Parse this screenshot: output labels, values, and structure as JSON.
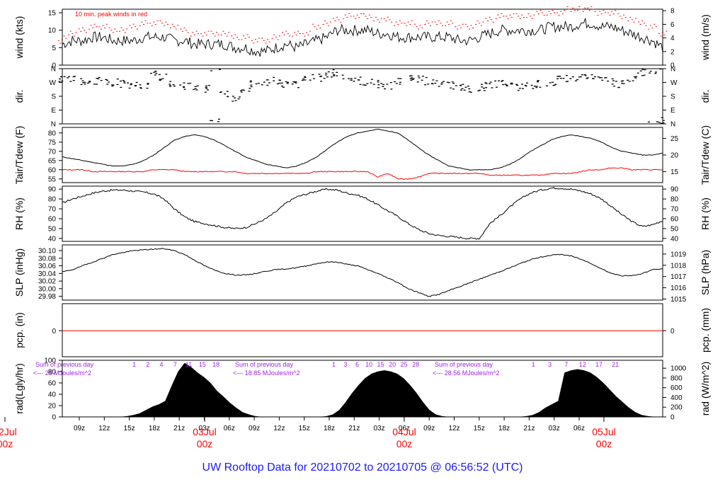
{
  "title": "UW Rooftop Data for 20210702  to  20210705 @ 06:56:52  (UTC)",
  "colors": {
    "title": "#1a1aff",
    "peak": "#ff0000",
    "dew": "#ff0000",
    "annot": "#a020f0",
    "daylabel": "#ff0000",
    "data": "#000000"
  },
  "chart_data": [
    {
      "id": "wind",
      "type": "line",
      "ylabel": "wind (kts)",
      "ylabel_right": "wind (m/s)",
      "ylim": [
        0,
        16
      ],
      "yticks": [
        0,
        5,
        10,
        15
      ],
      "yticks_right": [
        0,
        2,
        4,
        6,
        8
      ],
      "annotation": "10 min. peak winds in red",
      "series": [
        {
          "key": "wind",
          "values": [
            6,
            7,
            7,
            8,
            8,
            7,
            7,
            7,
            8,
            8,
            8,
            7,
            7,
            6,
            6,
            6,
            6,
            5,
            5,
            4,
            4,
            5,
            6,
            5,
            6,
            7,
            8,
            10,
            10,
            10,
            10,
            9,
            9,
            8,
            8,
            8,
            8,
            8,
            8,
            7,
            7,
            8,
            9,
            10,
            10,
            10,
            10,
            10,
            11,
            11,
            11,
            12,
            12,
            11,
            11,
            10,
            9,
            8,
            7,
            5
          ]
        },
        {
          "key": "peak",
          "values": [
            8,
            9,
            10,
            11,
            11,
            10,
            10,
            11,
            12,
            12,
            12,
            11,
            10,
            9,
            9,
            9,
            9,
            8,
            8,
            7,
            7,
            8,
            9,
            9,
            9,
            11,
            12,
            13,
            14,
            14,
            14,
            13,
            13,
            12,
            12,
            11,
            12,
            12,
            12,
            11,
            11,
            12,
            13,
            14,
            14,
            14,
            14,
            15,
            15,
            15,
            16,
            16,
            16,
            15,
            15,
            14,
            13,
            12,
            11,
            9
          ]
        }
      ]
    },
    {
      "id": "dir",
      "type": "scatter",
      "ylabel": "dir.",
      "ylabel_right": "dir.",
      "ytick_labels": [
        "N",
        "E",
        "S",
        "W",
        "N"
      ],
      "ytick_labels_right": [
        "N",
        "E",
        "S",
        "W",
        "N"
      ],
      "values": [
        285,
        290,
        280,
        275,
        280,
        270,
        260,
        250,
        245,
        330,
        300,
        270,
        250,
        240,
        230,
        10,
        200,
        170,
        230,
        260,
        275,
        280,
        260,
        260,
        290,
        300,
        320,
        330,
        300,
        280,
        270,
        260,
        250,
        280,
        300,
        290,
        280,
        260,
        250,
        240,
        230,
        240,
        250,
        260,
        250,
        240,
        250,
        260,
        270,
        290,
        300,
        310,
        300,
        290,
        270,
        260,
        300,
        330,
        350,
        20
      ]
    },
    {
      "id": "temp",
      "type": "line",
      "ylabel": "Tair/Tdew (F)",
      "ylabel_right": "Tair/Tdew (C)",
      "ylim": [
        53,
        83
      ],
      "yticks": [
        55,
        60,
        65,
        70,
        75,
        80
      ],
      "yticks_right": [
        15,
        20,
        25
      ],
      "series": [
        {
          "key": "tair",
          "values": [
            67,
            66,
            65,
            64,
            63,
            62,
            62,
            63,
            65,
            68,
            72,
            76,
            78,
            79,
            78,
            76,
            73,
            70,
            67,
            65,
            63,
            62,
            61,
            62,
            64,
            67,
            71,
            75,
            78,
            80,
            81,
            82,
            81,
            80,
            76,
            72,
            68,
            65,
            62,
            61,
            60,
            60,
            60,
            61,
            63,
            66,
            70,
            73,
            76,
            78,
            79,
            78,
            77,
            75,
            72,
            70,
            69,
            68,
            68,
            69
          ]
        },
        {
          "key": "tdew",
          "values": [
            60,
            60,
            60,
            59,
            59,
            59,
            59,
            59,
            59,
            60,
            60,
            60,
            59,
            59,
            59,
            59,
            59,
            59,
            58,
            58,
            58,
            58,
            58,
            58,
            58,
            59,
            59,
            59,
            59,
            59,
            59,
            56,
            58,
            55,
            55,
            56,
            58,
            58,
            58,
            58,
            58,
            58,
            57,
            57,
            57,
            57,
            57,
            57,
            58,
            58,
            58,
            59,
            60,
            60,
            61,
            61,
            60,
            60,
            60,
            60
          ]
        }
      ]
    },
    {
      "id": "rh",
      "type": "line",
      "ylabel": "RH (%)",
      "ylabel_right": "RH (%)",
      "ylim": [
        37,
        93
      ],
      "yticks": [
        40,
        50,
        60,
        70,
        80,
        90
      ],
      "yticks_right": [
        40,
        50,
        60,
        70,
        80,
        90
      ],
      "values": [
        76,
        80,
        83,
        86,
        88,
        89,
        89,
        88,
        87,
        85,
        80,
        70,
        62,
        57,
        55,
        53,
        51,
        50,
        51,
        55,
        60,
        67,
        76,
        82,
        85,
        88,
        90,
        89,
        86,
        84,
        80,
        74,
        68,
        62,
        55,
        49,
        45,
        43,
        42,
        41,
        40,
        40,
        55,
        63,
        72,
        80,
        86,
        89,
        91,
        91,
        90,
        88,
        85,
        80,
        72,
        64,
        57,
        52,
        54,
        58
      ]
    },
    {
      "id": "slp",
      "type": "line",
      "ylabel": "SLP (inHg)",
      "ylabel_right": "SLP (hPa)",
      "ylim": [
        29.97,
        30.115
      ],
      "yticks": [
        29.98,
        30.0,
        30.02,
        30.04,
        30.06,
        30.08,
        30.1
      ],
      "ytick_labels": [
        "29.98",
        "30.00",
        "30.02",
        "30.04",
        "30.06",
        "30.08",
        "30.10"
      ],
      "yticks_right_hpa": [
        1015,
        1016,
        1017,
        1018,
        1019
      ],
      "values": [
        30.044,
        30.05,
        30.06,
        30.07,
        30.08,
        30.09,
        30.095,
        30.1,
        30.102,
        30.104,
        30.105,
        30.1,
        30.09,
        30.075,
        30.06,
        30.048,
        30.04,
        30.036,
        30.036,
        30.04,
        30.046,
        30.05,
        30.052,
        30.055,
        30.06,
        30.066,
        30.07,
        30.07,
        30.064,
        30.06,
        30.05,
        30.04,
        30.028,
        30.016,
        30.0,
        29.99,
        29.98,
        29.985,
        29.995,
        30.005,
        30.015,
        30.025,
        30.035,
        30.045,
        30.055,
        30.066,
        30.076,
        30.083,
        30.088,
        30.09,
        30.086,
        30.077,
        30.066,
        30.052,
        30.04,
        30.034,
        30.034,
        30.04,
        30.05,
        30.052
      ]
    },
    {
      "id": "pcp",
      "type": "line",
      "ylabel": "pcp. (in)",
      "ylabel_right": "pcp. (mm)",
      "yticks": [
        0
      ],
      "yticks_right": [
        0
      ],
      "values": [
        0,
        0
      ]
    },
    {
      "id": "rad",
      "type": "area",
      "ylabel": "rad(Lgly/hr)",
      "ylabel_right": "rad (W/m^2)",
      "ylim": [
        0,
        100
      ],
      "yticks": [
        0,
        20,
        40,
        60,
        80,
        100
      ],
      "yticks_right": [
        0,
        200,
        400,
        600,
        800,
        1000
      ],
      "prev_label": "Sum of previous day",
      "days": [
        {
          "sum_label": "<--- 28 MJoules/m^2",
          "hours": [
            "1",
            "2",
            "4",
            "7",
            "11",
            "15",
            "18"
          ],
          "values": [
            0,
            0,
            0,
            0,
            0,
            0,
            0,
            0,
            0,
            0,
            1,
            3,
            6,
            12,
            18,
            22,
            28,
            55,
            80,
            95,
            88,
            78,
            70,
            60,
            46,
            36,
            25,
            16,
            8,
            4,
            1,
            0
          ]
        },
        {
          "sum_label": "<--- 18.85 MJoules/m^2",
          "hours": [
            "1",
            "3",
            "6",
            "10",
            "15",
            "20",
            "25",
            "28"
          ],
          "values": [
            0,
            0,
            0,
            0,
            0,
            0,
            0,
            0,
            0,
            0,
            1,
            4,
            12,
            26,
            42,
            56,
            68,
            76,
            80,
            82,
            80,
            76,
            68,
            56,
            42,
            26,
            12,
            4,
            1,
            0,
            0,
            0
          ]
        },
        {
          "sum_label": "<--- 28.56 MJoules/m^2",
          "hours": [
            "1",
            "3",
            "7",
            "12",
            "17",
            "21"
          ],
          "values": [
            0,
            0,
            0,
            0,
            0,
            0,
            0,
            0,
            0,
            0,
            1,
            3,
            8,
            16,
            22,
            28,
            78,
            82,
            84,
            82,
            78,
            70,
            60,
            48,
            36,
            26,
            16,
            8,
            3,
            1,
            0,
            0
          ]
        }
      ]
    }
  ],
  "time_axis": {
    "ticks": [
      "09z",
      "12z",
      "15z",
      "18z",
      "21z",
      "03z",
      "06z",
      "09z",
      "12z",
      "15z",
      "18z",
      "21z",
      "03z",
      "06z",
      "09z",
      "12z",
      "15z",
      "18z",
      "21z",
      "03z",
      "06z"
    ],
    "days": [
      {
        "date": "02Jul",
        "hour": "00z"
      },
      {
        "date": "03Jul",
        "hour": "00z"
      },
      {
        "date": "04Jul",
        "hour": "00z"
      },
      {
        "date": "05Jul",
        "hour": "00z"
      }
    ]
  }
}
